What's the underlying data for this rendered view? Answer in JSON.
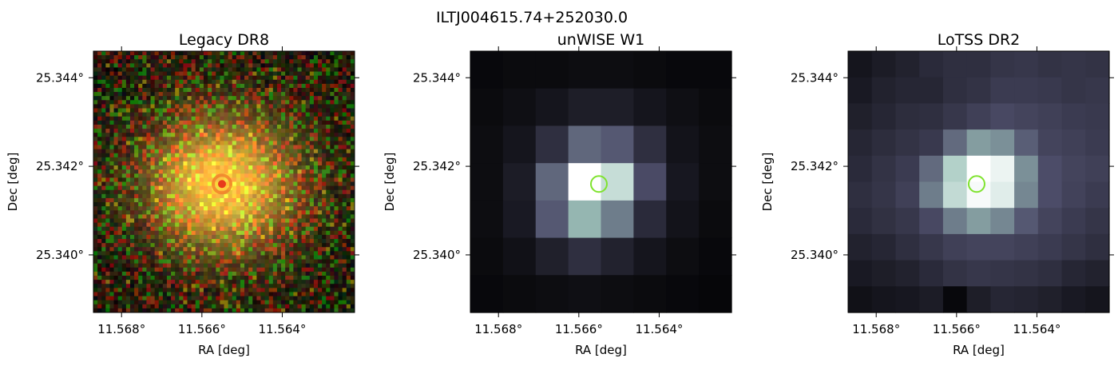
{
  "figure_title": "ILTJ004615.74+252030.0",
  "chart_data": [
    {
      "type": "heatmap",
      "title": "Legacy DR8",
      "xlabel": "RA [deg]",
      "ylabel": "Dec [deg]",
      "x_ticks": [
        {
          "value": 11.568,
          "label": "11.568°"
        },
        {
          "value": 11.566,
          "label": "11.566°"
        },
        {
          "value": 11.564,
          "label": "11.564°"
        }
      ],
      "y_ticks": [
        {
          "value": 25.344,
          "label": "25.344°"
        },
        {
          "value": 25.342,
          "label": "25.342°"
        },
        {
          "value": 25.34,
          "label": "25.340°"
        }
      ],
      "xlim": [
        11.5687,
        11.5622
      ],
      "ylim": [
        25.3387,
        25.3446
      ],
      "image": "rgb optical cutout, yellow-orange galaxy centred near RA 11.5655, Dec 25.3416, noisy red/green background",
      "marker": {
        "ra": 11.5655,
        "dec": 25.3416,
        "color": "#f07828",
        "shape": "circle"
      }
    },
    {
      "type": "heatmap",
      "title": "unWISE W1",
      "xlabel": "RA [deg]",
      "ylabel": "Dec [deg]",
      "x_ticks": [
        {
          "value": 11.568,
          "label": "11.568°"
        },
        {
          "value": 11.566,
          "label": "11.566°"
        },
        {
          "value": 11.564,
          "label": "11.564°"
        }
      ],
      "y_ticks": [
        {
          "value": 25.344,
          "label": "25.344°"
        },
        {
          "value": 25.342,
          "label": "25.342°"
        },
        {
          "value": 25.34,
          "label": "25.340°"
        }
      ],
      "xlim": [
        11.5687,
        11.5622
      ],
      "ylim": [
        25.3387,
        25.3446
      ],
      "colormap": "bone",
      "grid_shape": [
        7,
        8
      ],
      "values": [
        [
          0.04,
          0.05,
          0.05,
          0.06,
          0.06,
          0.05,
          0.04,
          0.04
        ],
        [
          0.05,
          0.07,
          0.1,
          0.14,
          0.14,
          0.1,
          0.07,
          0.05
        ],
        [
          0.06,
          0.1,
          0.22,
          0.45,
          0.4,
          0.22,
          0.09,
          0.06
        ],
        [
          0.06,
          0.13,
          0.45,
          1.0,
          0.85,
          0.35,
          0.11,
          0.06
        ],
        [
          0.06,
          0.12,
          0.4,
          0.7,
          0.52,
          0.2,
          0.09,
          0.05
        ],
        [
          0.05,
          0.08,
          0.15,
          0.22,
          0.16,
          0.1,
          0.06,
          0.04
        ],
        [
          0.04,
          0.05,
          0.06,
          0.07,
          0.06,
          0.05,
          0.04,
          0.03
        ]
      ],
      "marker": {
        "ra": 11.5655,
        "dec": 25.3416,
        "color": "#7fe32e",
        "shape": "circle"
      }
    },
    {
      "type": "heatmap",
      "title": "LoTSS DR2",
      "xlabel": "RA [deg]",
      "ylabel": "Dec [deg]",
      "x_ticks": [
        {
          "value": 11.568,
          "label": "11.568°"
        },
        {
          "value": 11.566,
          "label": "11.566°"
        },
        {
          "value": 11.564,
          "label": "11.564°"
        }
      ],
      "y_ticks": [
        {
          "value": 25.344,
          "label": "25.344°"
        },
        {
          "value": 25.342,
          "label": "25.342°"
        },
        {
          "value": 25.34,
          "label": "25.340°"
        }
      ],
      "xlim": [
        11.5687,
        11.5622
      ],
      "ylim": [
        25.3387,
        25.3446
      ],
      "colormap": "bone",
      "grid_shape": [
        10,
        11
      ],
      "values": [
        [
          0.1,
          0.13,
          0.16,
          0.2,
          0.22,
          0.22,
          0.25,
          0.26,
          0.24,
          0.25,
          0.24
        ],
        [
          0.12,
          0.16,
          0.18,
          0.18,
          0.22,
          0.24,
          0.28,
          0.28,
          0.27,
          0.25,
          0.26
        ],
        [
          0.15,
          0.18,
          0.21,
          0.22,
          0.26,
          0.3,
          0.34,
          0.32,
          0.3,
          0.28,
          0.27
        ],
        [
          0.18,
          0.21,
          0.24,
          0.27,
          0.46,
          0.62,
          0.58,
          0.42,
          0.32,
          0.3,
          0.28
        ],
        [
          0.2,
          0.24,
          0.28,
          0.46,
          0.8,
          1.0,
          0.95,
          0.58,
          0.36,
          0.32,
          0.3
        ],
        [
          0.22,
          0.25,
          0.3,
          0.52,
          0.84,
          0.98,
          0.92,
          0.55,
          0.36,
          0.31,
          0.28
        ],
        [
          0.2,
          0.23,
          0.26,
          0.34,
          0.52,
          0.62,
          0.55,
          0.4,
          0.32,
          0.28,
          0.25
        ],
        [
          0.16,
          0.18,
          0.22,
          0.26,
          0.3,
          0.32,
          0.32,
          0.3,
          0.28,
          0.25,
          0.22
        ],
        [
          0.12,
          0.14,
          0.16,
          0.2,
          0.24,
          0.26,
          0.25,
          0.24,
          0.22,
          0.18,
          0.16
        ],
        [
          0.08,
          0.1,
          0.11,
          0.13,
          0.04,
          0.14,
          0.18,
          0.17,
          0.15,
          0.12,
          0.1
        ]
      ],
      "marker": {
        "ra": 11.5655,
        "dec": 25.3416,
        "color": "#7fe32e",
        "shape": "circle"
      }
    }
  ]
}
